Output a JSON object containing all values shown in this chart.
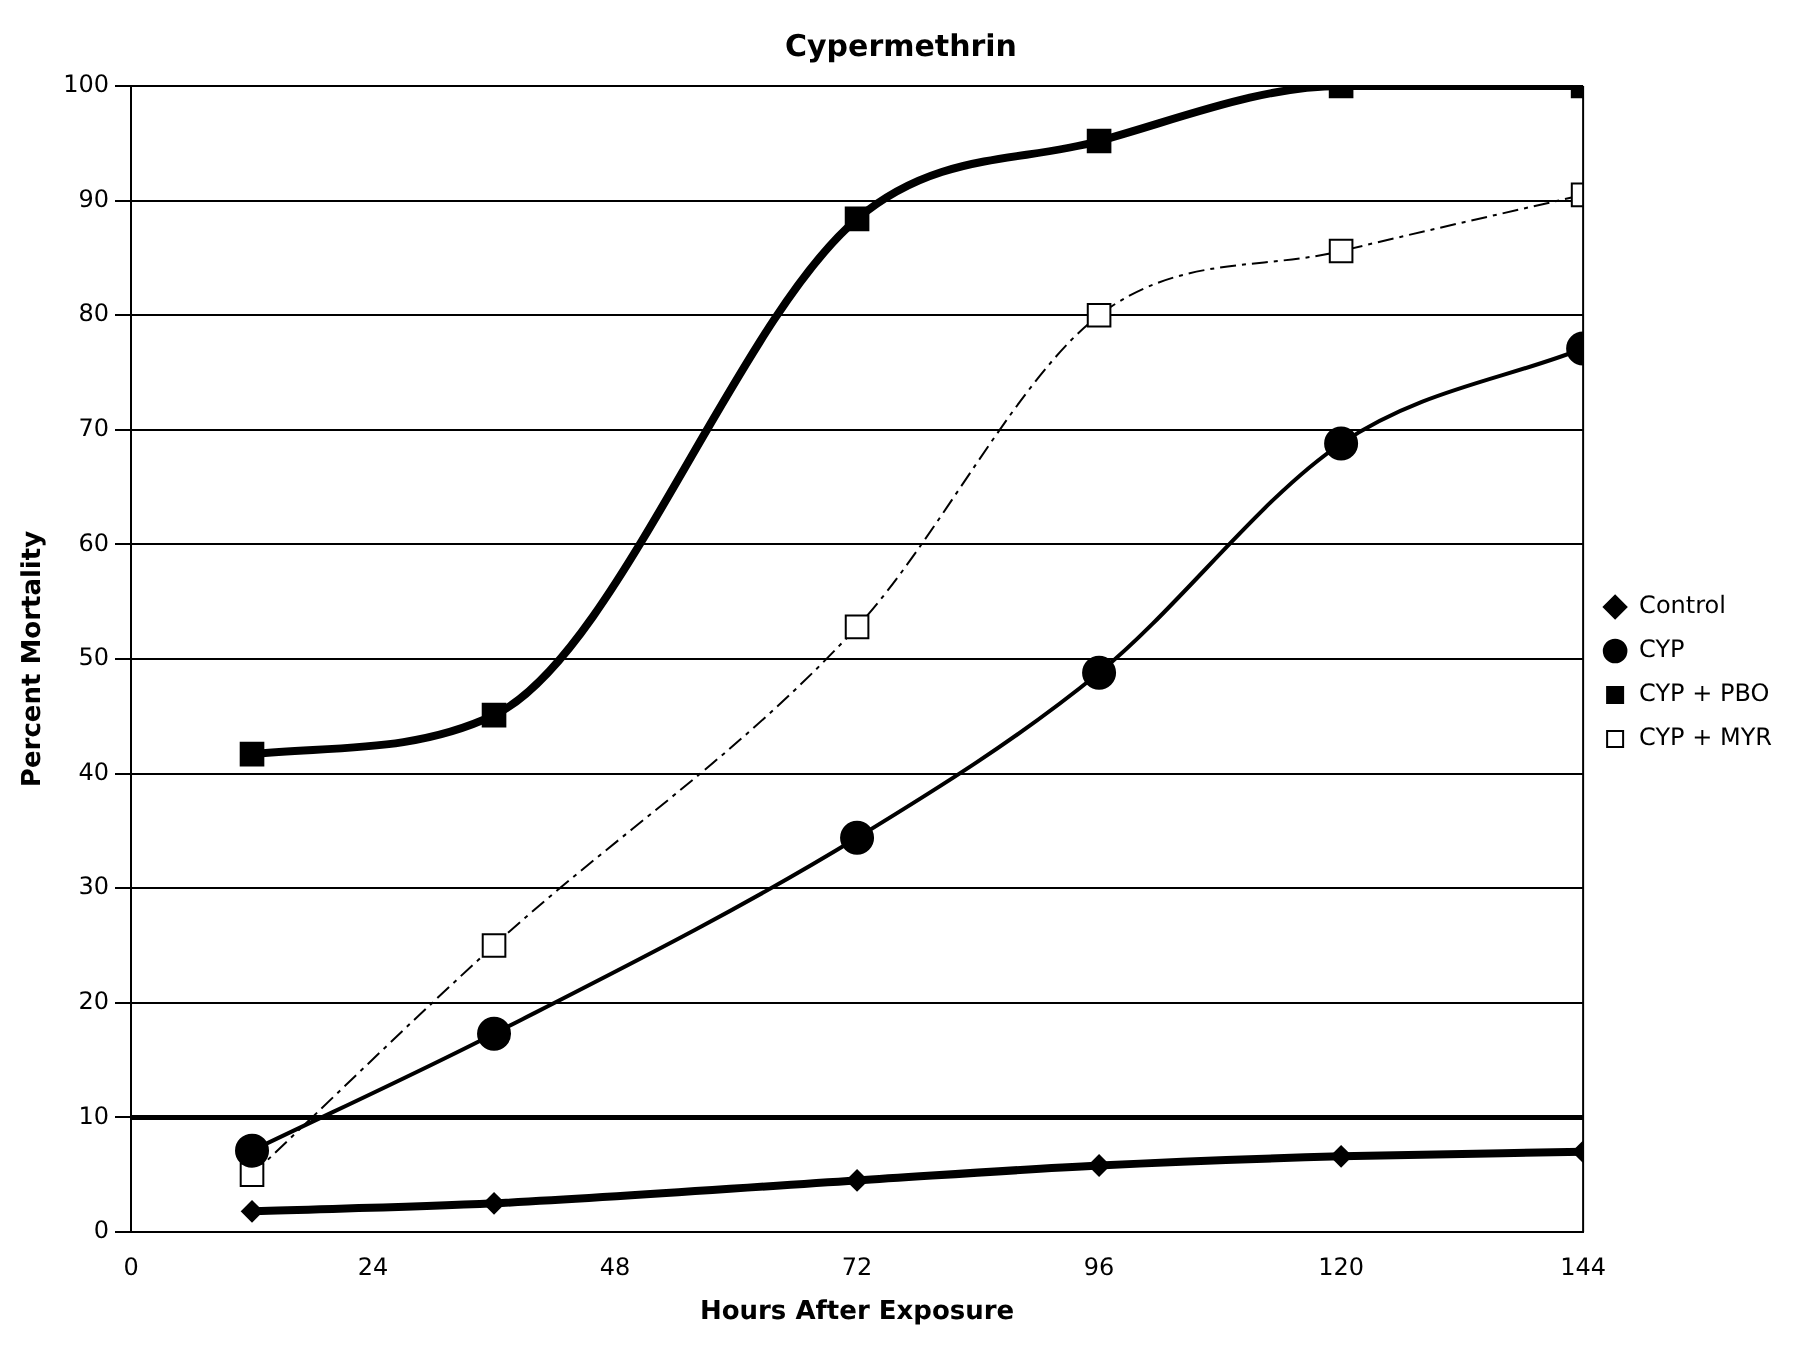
{
  "chart_data": {
    "type": "line",
    "title": "Cypermethrin",
    "xlabel": "Hours After Exposure",
    "ylabel": "Percent Mortality",
    "x": [
      12,
      36,
      72,
      96,
      120,
      144
    ],
    "series": [
      {
        "name": "Control",
        "color": "#000000",
        "marker": "diamond",
        "line_style": "solid",
        "values": [
          1.8,
          2.5,
          4.5,
          5.8,
          6.6,
          7.0
        ]
      },
      {
        "name": "CYP",
        "color": "#000000",
        "marker": "circle",
        "line_style": "solid",
        "values": [
          7.1,
          17.3,
          34.4,
          48.8,
          68.8,
          77.1
        ]
      },
      {
        "name": "CYP + PBO",
        "color": "#000000",
        "marker": "square",
        "line_style": "solid",
        "values": [
          41.7,
          45.1,
          88.4,
          95.2,
          100,
          100
        ]
      },
      {
        "name": "CYP + MYR",
        "color": "#000000",
        "marker": "square",
        "line_style": "dashed",
        "values": [
          5.0,
          25.0,
          52.8,
          80.0,
          85.6,
          90.5
        ]
      }
    ],
    "xlim": [
      0,
      144
    ],
    "xticks": [
      0,
      24,
      48,
      72,
      96,
      120,
      144
    ],
    "ylim": [
      0,
      100
    ],
    "yticks": [
      0,
      10,
      20,
      30,
      40,
      50,
      60,
      70,
      80,
      90,
      100
    ],
    "ref_lines": [
      {
        "axis": "y",
        "value": 10
      }
    ],
    "grid": "y",
    "legend": "right"
  }
}
